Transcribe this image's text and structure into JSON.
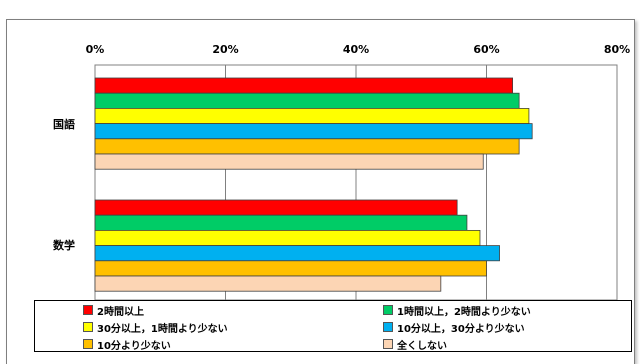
{
  "chart_data": {
    "type": "bar",
    "orientation": "horizontal",
    "categories": [
      "国語",
      "数学"
    ],
    "x_ticks": [
      "0%",
      "20%",
      "40%",
      "60%",
      "80%"
    ],
    "xlim": [
      0,
      80
    ],
    "grid": true,
    "legend_position": "bottom",
    "series": [
      {
        "name": "2時間以上",
        "color": "#ff0000",
        "values": [
          64,
          55.5
        ]
      },
      {
        "name": "1時間以上，2時間より少ない",
        "color": "#00cc66",
        "values": [
          65,
          57
        ]
      },
      {
        "name": "30分以上，1時間より少ない",
        "color": "#ffff00",
        "values": [
          66.5,
          59
        ]
      },
      {
        "name": "10分以上，30分より少ない",
        "color": "#00b0f0",
        "values": [
          67,
          62
        ]
      },
      {
        "name": "10分より少ない",
        "color": "#ffc000",
        "values": [
          65,
          60
        ]
      },
      {
        "name": "全くしない",
        "color": "#fcd5b4",
        "values": [
          59.5,
          53
        ]
      }
    ]
  }
}
